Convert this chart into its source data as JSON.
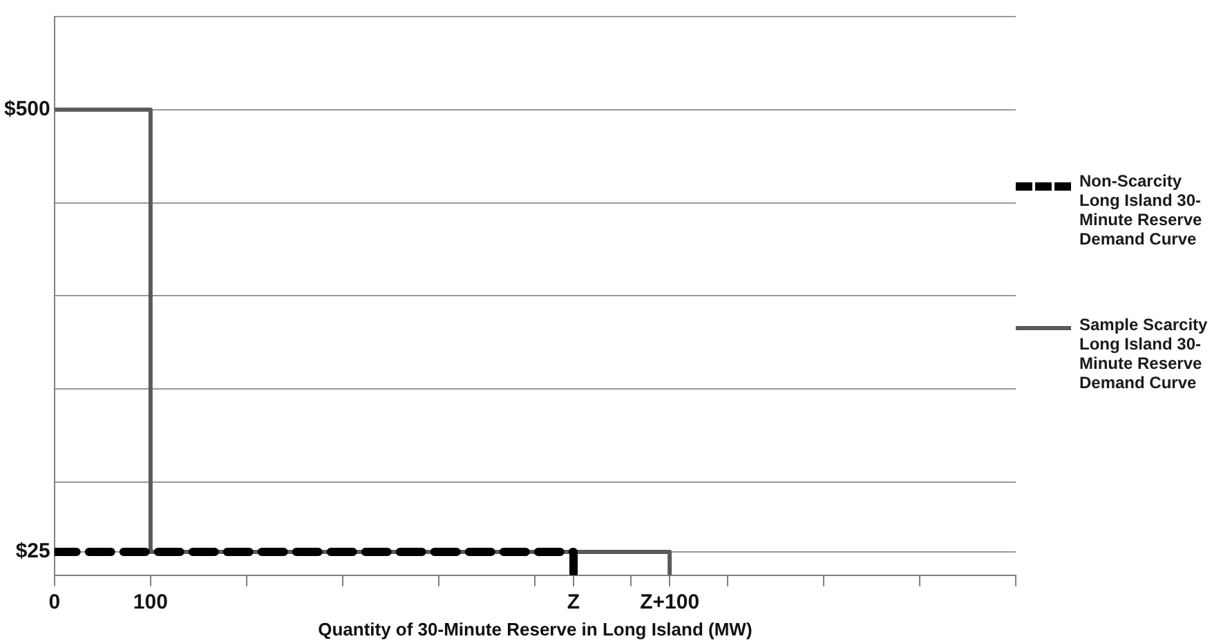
{
  "chart_data": {
    "type": "line",
    "xlabel": "Quantity of 30-Minute Reserve in Long Island (MW)",
    "xlim": [
      0,
      1000
    ],
    "xticks": [
      0,
      100,
      {
        "value": 200,
        "label": null
      },
      {
        "value": 300,
        "label": null
      },
      {
        "value": 400,
        "label": null
      },
      {
        "value": 500,
        "label": null
      },
      {
        "value": 540,
        "label": "Z"
      },
      {
        "value": 600,
        "label": null
      },
      {
        "value": 640,
        "label": "Z+100"
      },
      {
        "value": 700,
        "label": null
      },
      {
        "value": 800,
        "label": null
      },
      {
        "value": 900,
        "label": null
      },
      {
        "value": 1000,
        "label": null
      }
    ],
    "ylim": [
      0,
      600
    ],
    "yticks": [
      {
        "value": 0,
        "label": null
      },
      {
        "value": 25,
        "label": "$25"
      },
      {
        "value": 100,
        "label": null
      },
      {
        "value": 200,
        "label": null
      },
      {
        "value": 300,
        "label": null
      },
      {
        "value": 400,
        "label": null
      },
      {
        "value": 500,
        "label": "$500"
      },
      {
        "value": 600,
        "label": null
      }
    ],
    "grid": "y",
    "legend": "right",
    "marker": "none",
    "series": [
      {
        "name": "Non-Scarcity Long Island 30-Minute Reserve Demand Curve",
        "color": "#000000",
        "line_style": "dashed",
        "x": [
          0,
          540,
          540
        ],
        "values": [
          25,
          25,
          0
        ]
      },
      {
        "name": "Sample Scarcity Long Island 30-Minute Reserve Demand Curve",
        "color": "#595959",
        "line_style": "solid",
        "x": [
          0,
          100,
          100,
          640,
          640
        ],
        "values": [
          500,
          500,
          25,
          25,
          0
        ]
      }
    ]
  }
}
